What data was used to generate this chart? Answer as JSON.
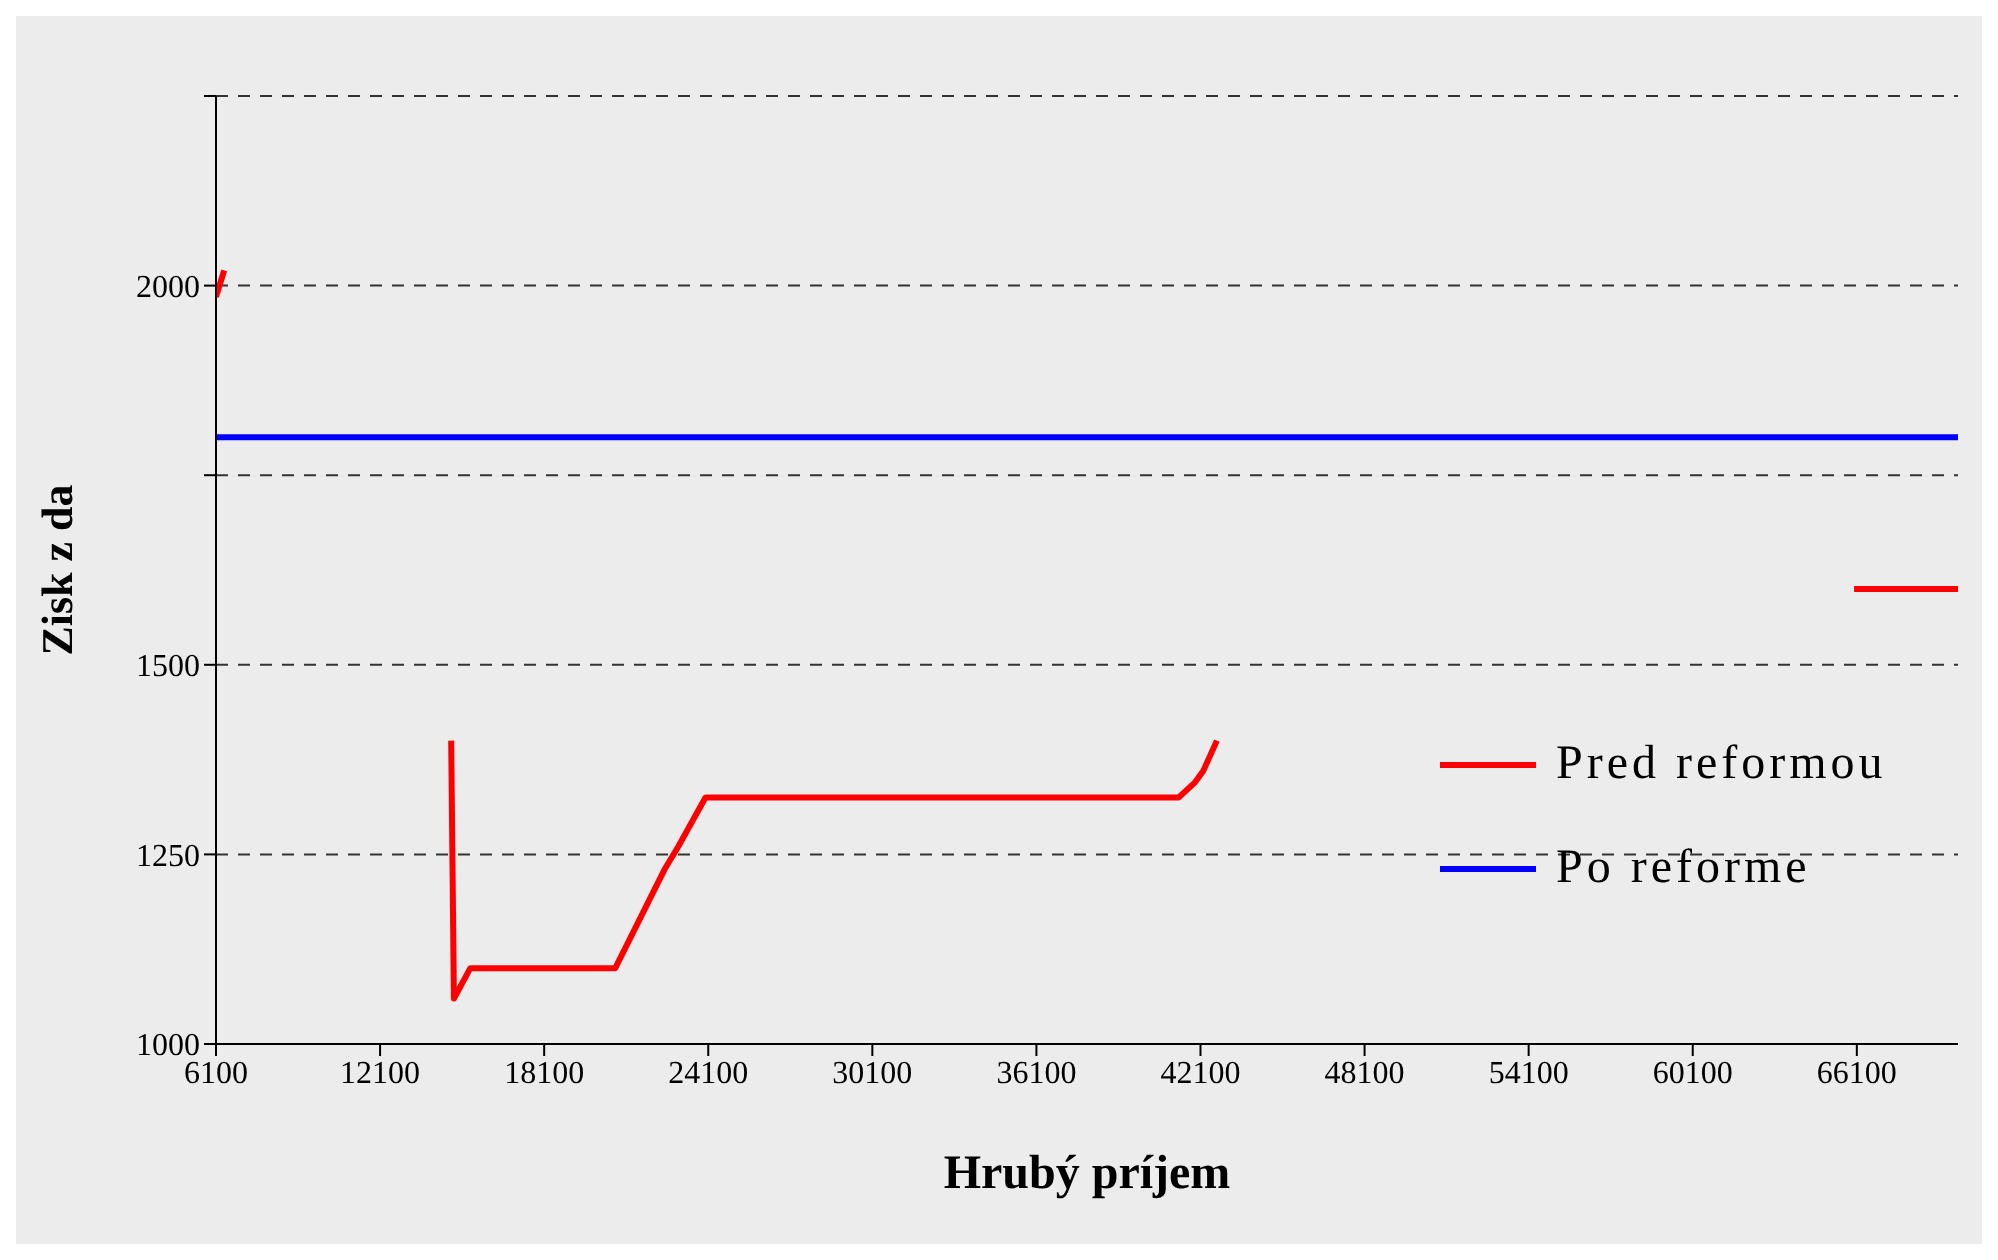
{
  "chart_data": {
    "type": "line",
    "xlabel": "Hrubý príjem",
    "ylabel": "Zisk z da",
    "xlim": [
      6100,
      69800
    ],
    "xticks": [
      6100,
      12100,
      18100,
      24100,
      30100,
      36100,
      42100,
      48100,
      54100,
      60100,
      66100
    ],
    "ylim": [
      1000,
      2250
    ],
    "yticks": [
      1000,
      1250,
      1500,
      {
        "value": 1750,
        "label": null
      },
      2000,
      {
        "value": 2250,
        "label": null
      }
    ],
    "grid": "y",
    "legend": "right",
    "line_style": "solid",
    "marker": "none",
    "series": [
      {
        "name": "Pred reformou",
        "color": "#ff0000",
        "x": [
          6100,
          6400,
          null,
          14700,
          14800,
          15400,
          20700,
          22500,
          23000,
          24000,
          41300,
          41900,
          42200,
          42700,
          null,
          66000,
          69800
        ],
        "values": [
          1985,
          2020,
          null,
          1400,
          1060,
          1100,
          1100,
          1230,
          1260,
          1325,
          1325,
          1345,
          1360,
          1400,
          null,
          1600,
          1600
        ]
      },
      {
        "name": "Po reforme",
        "color": "#0000ff",
        "x": [
          6100,
          69800
        ],
        "values": [
          1800,
          1800
        ]
      }
    ]
  }
}
